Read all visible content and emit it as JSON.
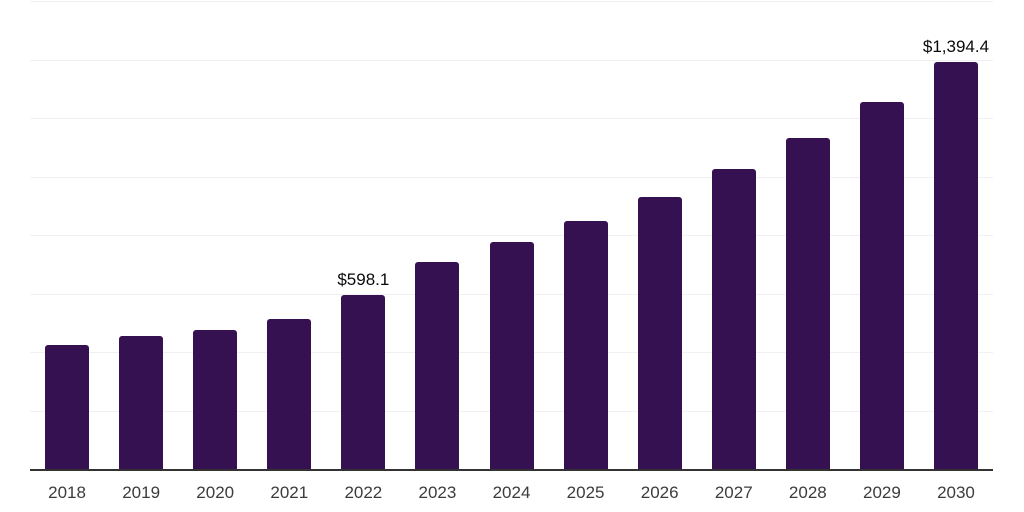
{
  "chart_data": {
    "type": "bar",
    "title": "",
    "xlabel": "",
    "ylabel": "",
    "categories": [
      "2018",
      "2019",
      "2020",
      "2021",
      "2022",
      "2023",
      "2024",
      "2025",
      "2026",
      "2027",
      "2028",
      "2029",
      "2030"
    ],
    "values": [
      426.0,
      460.0,
      478.0,
      515.0,
      598.1,
      712.0,
      778.0,
      850.0,
      935.0,
      1030.0,
      1136.0,
      1258.0,
      1394.4
    ],
    "labels": [
      "",
      "",
      "",
      "",
      "$598.1",
      "",
      "",
      "",
      "",
      "",
      "",
      "",
      "$1,394.4"
    ],
    "ylim": [
      0,
      1600
    ],
    "gridline_step": 200,
    "grid": "horizontal-only",
    "legend": "none",
    "y_axis_tick_labels": "none",
    "bar_color": "#361151",
    "axis_line_color": "#333333",
    "gridline_color": "#f0f0f2",
    "tick_label_color": "#3c3c3c",
    "data_label_color": "#0a0a0a",
    "background_color": "#ffffff"
  }
}
